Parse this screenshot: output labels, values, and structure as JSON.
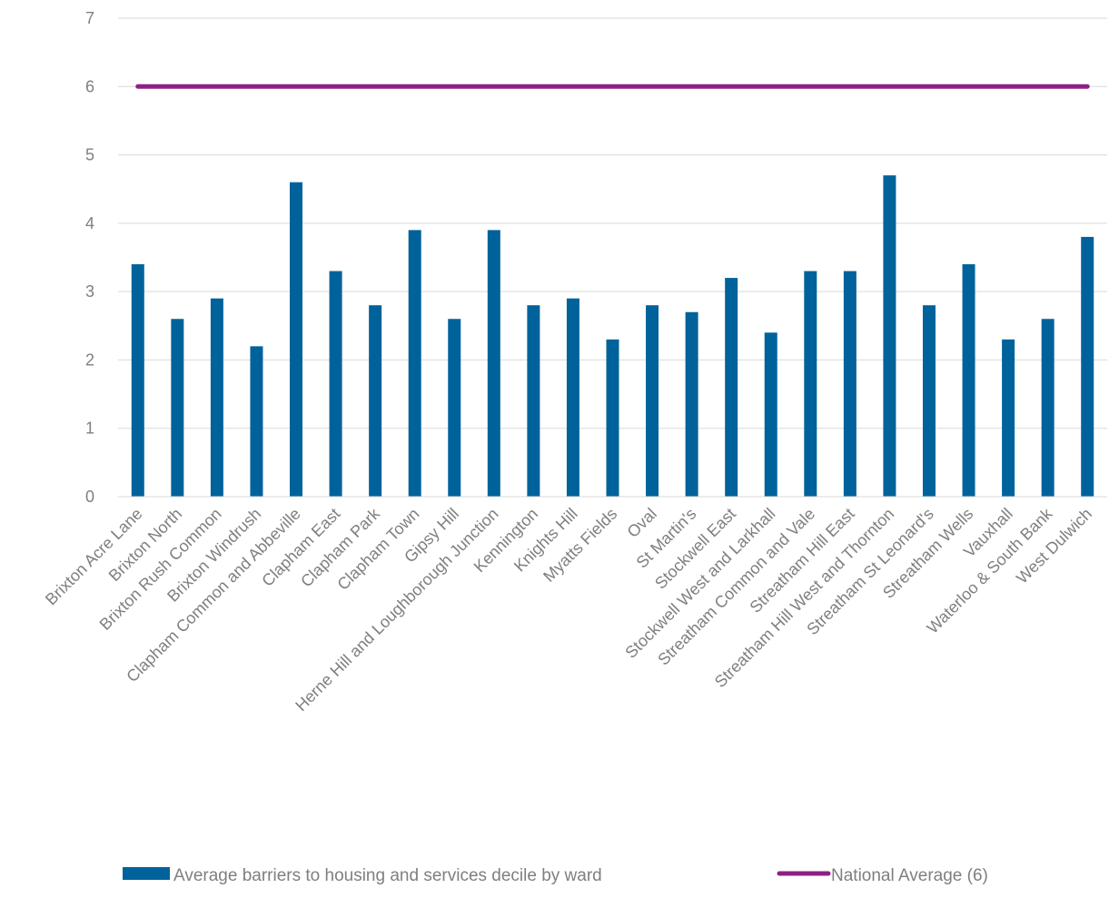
{
  "chart_data": {
    "type": "bar",
    "categories": [
      "Brixton Acre Lane",
      "Brixton North",
      "Brixton Rush Common",
      "Brixton Windrush",
      "Clapham Common and Abbeville",
      "Clapham East",
      "Clapham Park",
      "Clapham Town",
      "Gipsy Hill",
      "Herne Hill and Loughborough Junction",
      "Kennington",
      "Knights Hill",
      "Myatts Fields",
      "Oval",
      "St Martin's",
      "Stockwell East",
      "Stockwell West and Larkhall",
      "Streatham Common and Vale",
      "Streatham Hill East",
      "Streatham Hill West and Thornton",
      "Streatham St Leonard's",
      "Streatham Wells",
      "Vauxhall",
      "Waterloo & South Bank",
      "West Dulwich"
    ],
    "series": [
      {
        "name": "Average barriers to housing and services decile by ward",
        "type": "bar",
        "color": "#00629b",
        "values": [
          3.4,
          2.6,
          2.9,
          2.2,
          4.6,
          3.3,
          2.8,
          3.9,
          2.6,
          3.9,
          2.8,
          2.9,
          2.3,
          2.8,
          2.7,
          3.2,
          2.4,
          3.3,
          3.3,
          4.7,
          2.8,
          3.4,
          2.3,
          2.6,
          3.8
        ]
      },
      {
        "name": "National Average (6)",
        "type": "line",
        "color": "#8f1f82",
        "values": [
          6,
          6,
          6,
          6,
          6,
          6,
          6,
          6,
          6,
          6,
          6,
          6,
          6,
          6,
          6,
          6,
          6,
          6,
          6,
          6,
          6,
          6,
          6,
          6,
          6
        ]
      }
    ],
    "y_ticks": [
      "0",
      "1",
      "2",
      "3",
      "4",
      "5",
      "6",
      "7"
    ],
    "ylim": [
      0,
      7
    ],
    "grid": true,
    "legend_position": "bottom"
  }
}
